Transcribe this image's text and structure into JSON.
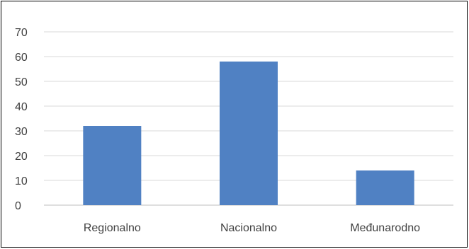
{
  "chart_data": {
    "type": "bar",
    "title": "",
    "xlabel": "",
    "ylabel": "",
    "categories": [
      "Regionalno",
      "Nacionalno",
      "Međunarodno"
    ],
    "values": [
      32,
      58,
      14
    ],
    "ylim": [
      0,
      70
    ],
    "yticks": [
      0,
      10,
      20,
      30,
      40,
      50,
      60,
      70
    ],
    "grid": true,
    "legend": "none",
    "bar_color": "#5081c3",
    "grid_color": "#d9d9d9",
    "axis_line_color": "#bfbfbf",
    "text_color": "#404040"
  }
}
